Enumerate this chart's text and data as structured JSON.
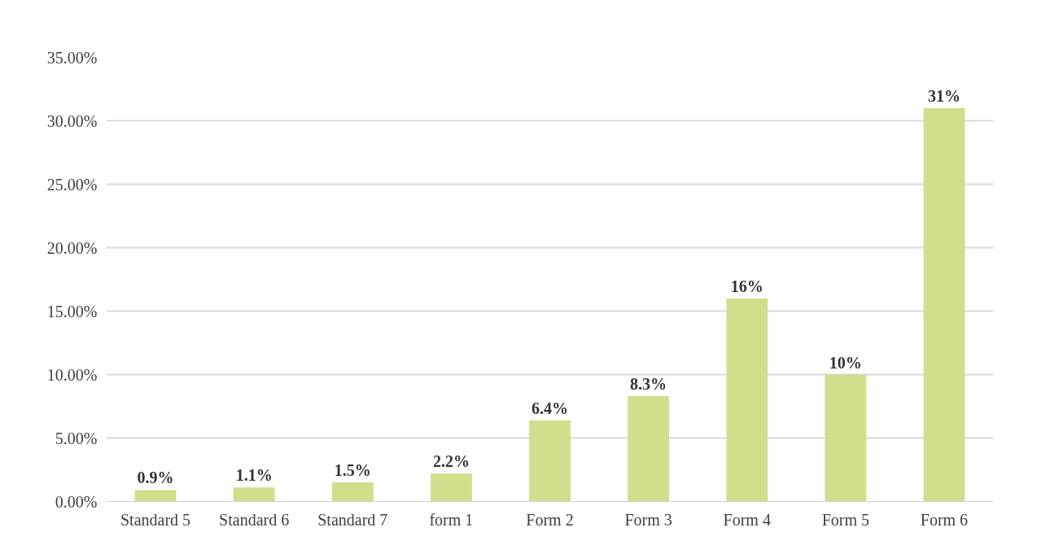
{
  "chart_data": {
    "type": "bar",
    "categories": [
      "Standard 5",
      "Standard 6",
      "Standard 7",
      "form 1",
      "Form 2",
      "Form 3",
      "Form 4",
      "Form 5",
      "Form 6"
    ],
    "values": [
      0.9,
      1.1,
      1.5,
      2.2,
      6.4,
      8.3,
      16,
      10,
      31
    ],
    "value_labels": [
      "0.9%",
      "1.1%",
      "1.5%",
      "2.2%",
      "6.4%",
      "8.3%",
      "16%",
      "10%",
      "31%"
    ],
    "color": "#cfdf8b",
    "ylim": [
      0,
      35
    ],
    "yticks": [
      {
        "value": 0,
        "label": "0.00%"
      },
      {
        "value": 5,
        "label": "5.00%"
      },
      {
        "value": 10,
        "label": "10.00%"
      },
      {
        "value": 15,
        "label": "15.00%"
      },
      {
        "value": 20,
        "label": "20.00%"
      },
      {
        "value": 25,
        "label": "25.00%"
      },
      {
        "value": 30,
        "label": "30.00%"
      },
      {
        "value": 35,
        "label": "35.00%"
      }
    ],
    "grid": "y"
  }
}
